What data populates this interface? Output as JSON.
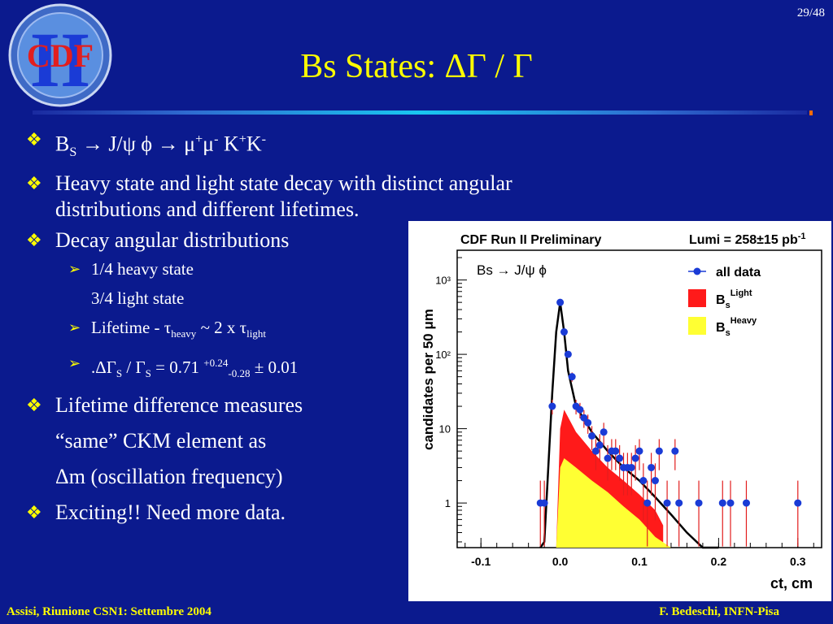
{
  "page_number": "29/48",
  "logo": {
    "text": "CDF",
    "numeral": "II"
  },
  "title": "Bs States: ΔΓ / Γ",
  "bullets": {
    "b1": {
      "B": "B",
      "S": "S",
      "mid": " → J/ψ ϕ  → μ",
      "plus1": "+",
      "mu": "μ",
      "minus1": "-",
      "K": " K",
      "plus2": "+",
      "K2": "K",
      "minus2": "-"
    },
    "b2_line1": "Heavy state and light state decay with distinct angular",
    "b2_line2": "distributions and different lifetimes.",
    "b3": "Decay angular distributions",
    "sub1": "1/4 heavy state",
    "sub1b": "3/4 light state",
    "sub2": {
      "pre": "Lifetime - τ",
      "heavy": "heavy",
      "mid": " ~ 2 x τ",
      "light": "light"
    },
    "sub3": {
      "pre": ".ΔΓ",
      "s1": "S",
      "slash": " / Γ",
      "s2": "S",
      "eq": " = 0.71 ",
      "up": "+0.24",
      "down": "-0.28",
      "post": " ± 0.01"
    },
    "b4_line1": "Lifetime difference measures",
    "b4_line2": "“same” CKM element as",
    "b4_line3": "Δm (oscillation frequency)",
    "b5": "Exciting!! Need more data."
  },
  "footer": {
    "left": "Assisi, Riunione CSN1: Settembre 2004",
    "right": "F. Bedeschi, INFN-Pisa"
  },
  "colors": {
    "background": "#0b1a8e",
    "title": "#ffff00",
    "light_fill": "#ff1a1a",
    "heavy_fill": "#ffff33",
    "data": "#1a3bd6"
  },
  "chart_data": {
    "type": "scatter",
    "title": "CDF Run II Preliminary",
    "lumi_label": "Lumi = 258±15 pb",
    "lumi_exp": "-1",
    "inset_label": "Bs → J/ψ ϕ",
    "xlabel": "ct, cm",
    "ylabel": "candidates per 50 μm",
    "x_ticks": [
      "-0.1",
      "0.0",
      "0.1",
      "0.2",
      "0.3"
    ],
    "y_ticks": [
      "1",
      "10",
      "10²",
      "10³"
    ],
    "xlim": [
      -0.13,
      0.33
    ],
    "ylim_log10": [
      -0.6,
      3.4
    ],
    "y_scale": "log",
    "legend": [
      "all data",
      "Bs Light",
      "Bs Heavy"
    ],
    "legend_light_sub": "s",
    "legend_light_sup": "Light",
    "legend_heavy_sub": "s",
    "legend_heavy_sup": "Heavy",
    "series": [
      {
        "name": "all data",
        "x": [
          -0.025,
          -0.02,
          -0.01,
          0.0,
          0.005,
          0.01,
          0.015,
          0.02,
          0.025,
          0.03,
          0.035,
          0.04,
          0.045,
          0.05,
          0.055,
          0.06,
          0.065,
          0.07,
          0.075,
          0.08,
          0.085,
          0.09,
          0.095,
          0.1,
          0.105,
          0.11,
          0.115,
          0.12,
          0.125,
          0.135,
          0.145,
          0.15,
          0.175,
          0.205,
          0.215,
          0.235,
          0.3
        ],
        "y": [
          1,
          1,
          20,
          500,
          200,
          100,
          50,
          20,
          18,
          14,
          12,
          8,
          5,
          6,
          9,
          4,
          5,
          5,
          4,
          3,
          3,
          3,
          4,
          5,
          2,
          1,
          3,
          2,
          5,
          1,
          5,
          1,
          1,
          1,
          1,
          1,
          1
        ]
      }
    ],
    "fit": {
      "x": [
        -0.025,
        -0.02,
        -0.015,
        -0.01,
        -0.005,
        0.0,
        0.005,
        0.01,
        0.02,
        0.04,
        0.06,
        0.08,
        0.1,
        0.12,
        0.14,
        0.16,
        0.18,
        0.2
      ],
      "y": [
        0.05,
        0.3,
        3,
        30,
        200,
        500,
        200,
        60,
        20,
        9,
        5,
        3,
        2,
        1.2,
        0.7,
        0.4,
        0.15,
        0.05
      ]
    },
    "light_component": {
      "x": [
        -0.005,
        0.0,
        0.005,
        0.02,
        0.04,
        0.06,
        0.08,
        0.1,
        0.12,
        0.13
      ],
      "y": [
        0.05,
        10,
        18,
        9,
        5,
        3,
        2,
        1.3,
        0.8,
        0.5
      ]
    },
    "heavy_component": {
      "x": [
        -0.005,
        0.0,
        0.005,
        0.02,
        0.04,
        0.06,
        0.08,
        0.1,
        0.12,
        0.14,
        0.16
      ],
      "y": [
        0.05,
        3,
        4,
        3,
        2,
        1.4,
        0.9,
        0.6,
        0.35,
        0.15,
        0.05
      ]
    }
  }
}
